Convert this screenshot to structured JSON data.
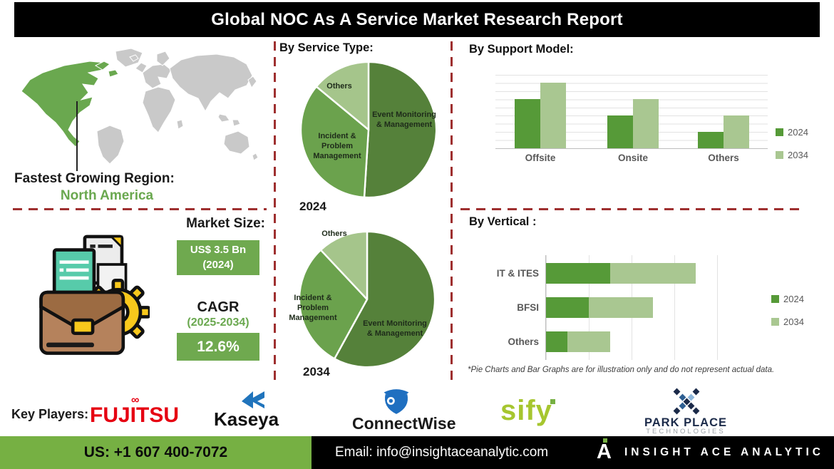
{
  "banner": {
    "title": "Global NOC As A Service Market Research Report"
  },
  "region": {
    "label": "Fastest Growing Region:",
    "value": "North America"
  },
  "market": {
    "size_label": "Market Size:",
    "size_value": "US$ 3.5 Bn",
    "size_year": "(2024)",
    "cagr_label": "CAGR",
    "cagr_period": "(2025-2034)",
    "cagr_value": "12.6%"
  },
  "chart_data": [
    {
      "id": "pie-2024",
      "type": "pie",
      "title": "By Service Type:",
      "year_label": "2024",
      "labels": [
        "Event Monitoring & Management",
        "Incident & Problem Management",
        "Others"
      ],
      "values": [
        51,
        35,
        14
      ],
      "colors": [
        "#55813a",
        "#6ba24d",
        "#a5c58b"
      ],
      "legend_position": "none"
    },
    {
      "id": "pie-2034",
      "type": "pie",
      "title": "By Service Type:",
      "year_label": "2034",
      "labels": [
        "Event Monitoring & Management",
        "Incident & Problem Management",
        "Others"
      ],
      "values": [
        58,
        30,
        12
      ],
      "colors": [
        "#55813a",
        "#6ba24d",
        "#a5c58b"
      ],
      "legend_position": "none"
    },
    {
      "id": "support-model",
      "type": "bar",
      "title": "By Support Model:",
      "categories": [
        "Offsite",
        "Onsite",
        "Others"
      ],
      "series": [
        {
          "name": "2024",
          "values": [
            60,
            40,
            20
          ],
          "color": "#569a38"
        },
        {
          "name": "2034",
          "values": [
            80,
            60,
            40
          ],
          "color": "#a9c791"
        }
      ],
      "ylim": [
        0,
        90
      ],
      "grid": "horizontal",
      "legend_position": "right"
    },
    {
      "id": "vertical",
      "type": "bar-horizontal-stacked",
      "title": "By Vertical :",
      "categories": [
        "IT & ITES",
        "BFSI",
        "Others"
      ],
      "series": [
        {
          "name": "2024",
          "values": [
            37.5,
            25,
            12.5
          ],
          "color": "#569a38"
        },
        {
          "name": "2034",
          "values": [
            50,
            37.5,
            25
          ],
          "color": "#a9c791"
        }
      ],
      "xlim": [
        0,
        100
      ],
      "grid": "vertical",
      "legend_position": "right",
      "footnote": "*Pie Charts and Bar Graphs are for illustration only and do not represent actual data."
    }
  ],
  "key_players": {
    "label": "Key Players:",
    "companies": [
      {
        "name": "FUJITSU"
      },
      {
        "name": "Kaseya"
      },
      {
        "name": "ConnectWise"
      },
      {
        "name": "sify"
      },
      {
        "name": "PARK PLACE",
        "sub": "TECHNOLOGIES"
      }
    ]
  },
  "footer": {
    "phone": "US: +1 607 400-7072",
    "email": "Email: info@insightaceanalytic.com",
    "brand": "INSIGHT ACE ANALYTIC"
  },
  "colors": {
    "accent_green": "#6aa84f",
    "box_green": "#6fa94f",
    "footer_green": "#76b043",
    "bar_2024": "#569a38",
    "bar_2034": "#a9c791",
    "dash_red": "#9e2f2f",
    "map_land": "#c9c9c9",
    "map_highlight": "#6aa84f"
  }
}
